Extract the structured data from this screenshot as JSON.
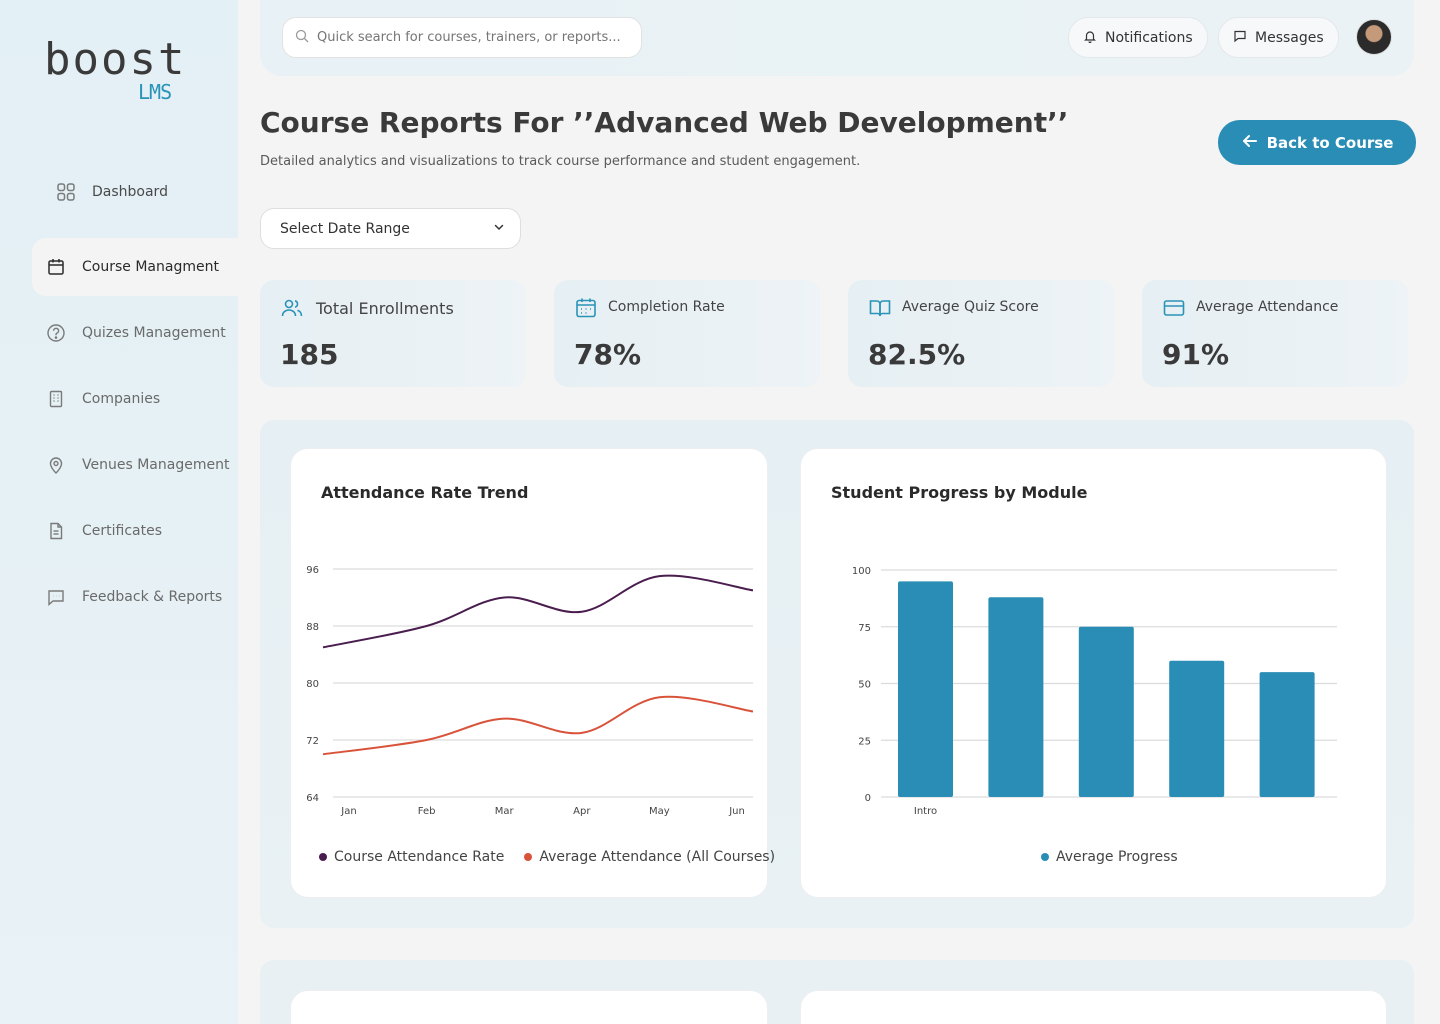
{
  "brand": {
    "word": "boost",
    "sub": "LMS"
  },
  "sidebar": {
    "items": [
      {
        "label": "Dashboard",
        "icon": "grid-icon"
      },
      {
        "label": "Course Managment",
        "icon": "calendar-icon",
        "active": true
      },
      {
        "label": "Quizes Management",
        "icon": "question-icon"
      },
      {
        "label": "Companies",
        "icon": "building-icon"
      },
      {
        "label": "Venues Management",
        "icon": "location-pin-icon"
      },
      {
        "label": "Certificates",
        "icon": "document-icon"
      },
      {
        "label": "Feedback & Reports",
        "icon": "chat-icon"
      }
    ]
  },
  "topbar": {
    "search_placeholder": "Quick search for courses, trainers, or reports...",
    "notifications_label": "Notifications",
    "messages_label": "Messages"
  },
  "header": {
    "title": "Course Reports For ’’Advanced Web Development’’",
    "subtitle": "Detailed analytics and visualizations to track course performance and student engagement.",
    "back_label": "Back to Course",
    "date_range_label": "Select Date Range"
  },
  "stats": [
    {
      "label": "Total Enrollments",
      "value": "185",
      "icon": "users-icon"
    },
    {
      "label": "Completion Rate",
      "value": "78%",
      "icon": "calendar-icon"
    },
    {
      "label": "Average Quiz Score",
      "value": "82.5%",
      "icon": "book-icon"
    },
    {
      "label": "Average Attendance",
      "value": "91%",
      "icon": "card-icon"
    }
  ],
  "colors": {
    "accent": "#2a8db5",
    "series1": "#4a1d4f",
    "series2": "#d9533a",
    "bar": "#2a8db5"
  },
  "chart_data": [
    {
      "type": "line",
      "title": "Attendance Rate Trend",
      "x": [
        "Jan",
        "Feb",
        "Mar",
        "Apr",
        "May",
        "Jun"
      ],
      "ylim": [
        64,
        96
      ],
      "yticks": [
        96,
        88,
        80,
        72,
        64
      ],
      "grid": true,
      "legend_position": "bottom",
      "series": [
        {
          "name": "Course Attendance Rate",
          "values": [
            85,
            88,
            92,
            90,
            95,
            93
          ]
        },
        {
          "name": "Average Attendance (All Courses)",
          "values": [
            70,
            72,
            75,
            73,
            78,
            76
          ]
        }
      ]
    },
    {
      "type": "bar",
      "title": "Student Progress by Module",
      "categories": [
        "Intro",
        "",
        "",
        "",
        ""
      ],
      "ylim": [
        0,
        100
      ],
      "yticks": [
        100,
        75,
        50,
        25,
        0
      ],
      "grid": true,
      "legend_position": "bottom",
      "series": [
        {
          "name": "Average Progress",
          "values": [
            95,
            88,
            75,
            60,
            55
          ]
        }
      ]
    }
  ]
}
